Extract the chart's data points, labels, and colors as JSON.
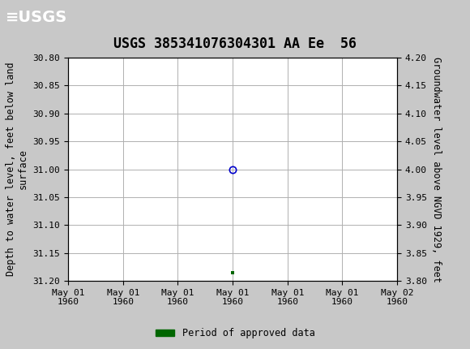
{
  "title": "USGS 385341076304301 AA Ee  56",
  "ylabel_left": "Depth to water level, feet below land\nsurface",
  "ylabel_right": "Groundwater level above NGVD 1929, feet",
  "ylim_left": [
    31.2,
    30.8
  ],
  "ylim_right": [
    3.8,
    4.2
  ],
  "yticks_left": [
    30.8,
    30.85,
    30.9,
    30.95,
    31.0,
    31.05,
    31.1,
    31.15,
    31.2
  ],
  "yticks_right": [
    3.8,
    3.85,
    3.9,
    3.95,
    4.0,
    4.05,
    4.1,
    4.15,
    4.2
  ],
  "xtick_positions": [
    0,
    1,
    2,
    3,
    4,
    5,
    6
  ],
  "xtick_labels": [
    "May 01\n1960",
    "May 01\n1960",
    "May 01\n1960",
    "May 01\n1960",
    "May 01\n1960",
    "May 01\n1960",
    "May 02\n1960"
  ],
  "data_point_x": 3.0,
  "data_point_y": 31.0,
  "data_point_color": "#0000cc",
  "green_marker_x": 3.0,
  "green_marker_y": 31.185,
  "green_marker_color": "#006600",
  "header_color": "#006633",
  "header_text_color": "#ffffff",
  "background_color": "#c8c8c8",
  "plot_bg_color": "#ffffff",
  "grid_color": "#b0b0b0",
  "legend_label": "Period of approved data",
  "legend_color": "#006600",
  "title_fontsize": 12,
  "axis_label_fontsize": 8.5,
  "tick_fontsize": 8,
  "xmin": 0,
  "xmax": 6
}
